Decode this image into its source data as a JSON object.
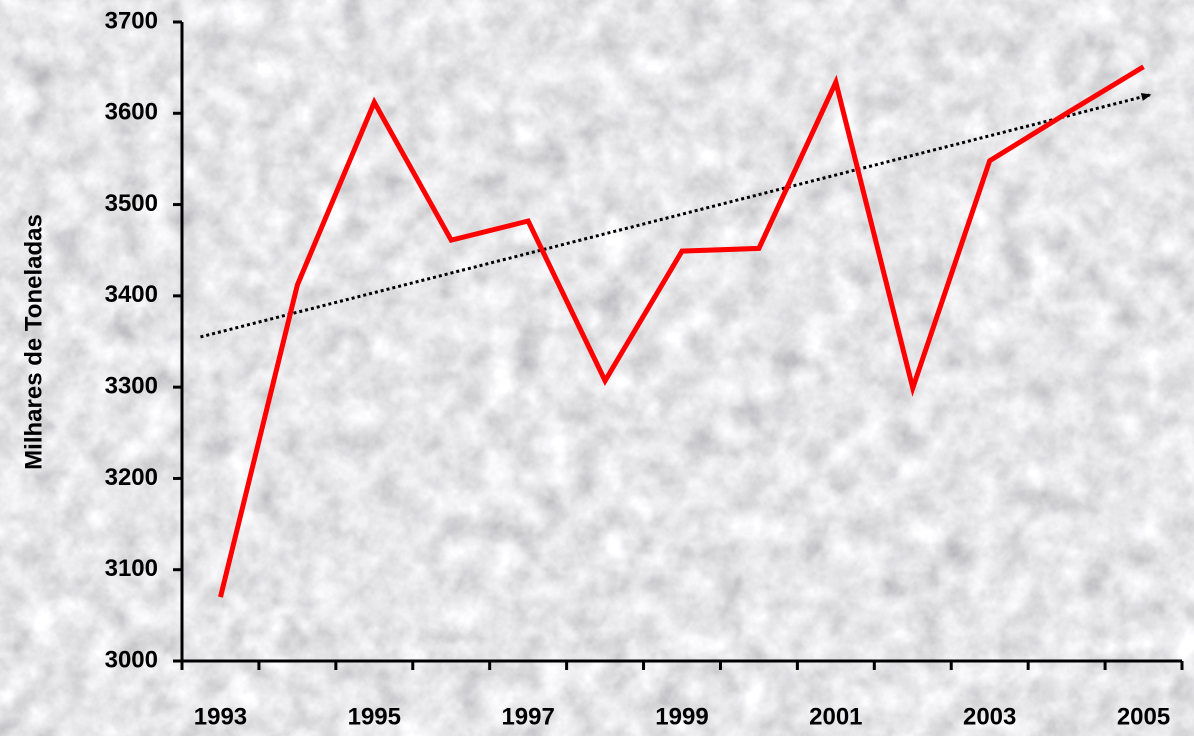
{
  "chart_data": {
    "type": "line",
    "y_label": "Milhares de Toneladas",
    "categories": [
      "1993",
      null,
      "1995",
      null,
      "1997",
      null,
      "1999",
      null,
      "2001",
      null,
      "2003",
      null,
      "2005"
    ],
    "series": [
      {
        "color": "#ff0000",
        "values": [
          3070,
          3412,
          3612,
          3461,
          3482,
          3307,
          3449,
          3452,
          3634,
          3299,
          3548,
          3600,
          3651
        ]
      }
    ],
    "trendline": {
      "color": "#000000",
      "values": [
        3355,
        3620
      ]
    },
    "ylim": [
      3000,
      3700
    ],
    "yticks": [
      3000,
      3100,
      3200,
      3300,
      3400,
      3500,
      3600,
      3700
    ]
  }
}
